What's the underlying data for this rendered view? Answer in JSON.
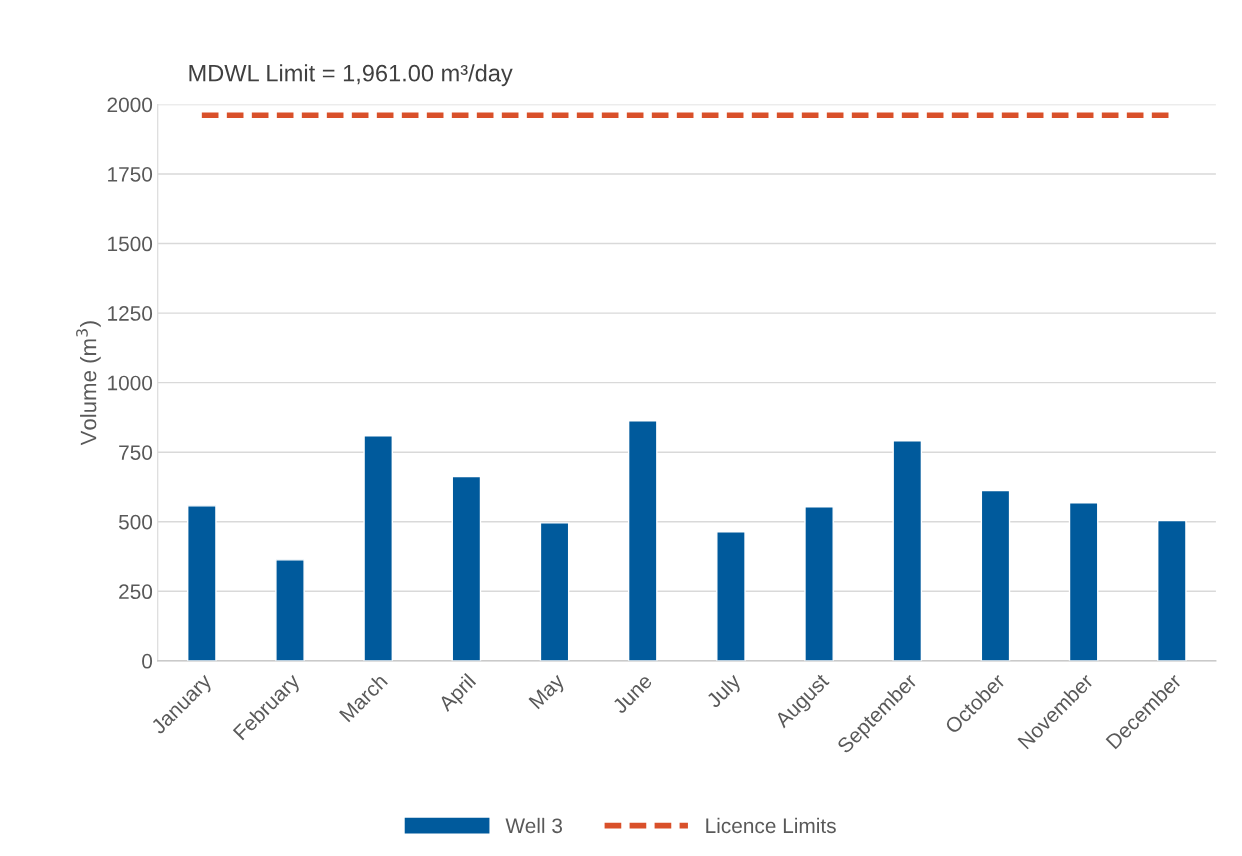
{
  "chart_data": {
    "type": "bar",
    "ylabel": "Volume (m$^{3}$)",
    "annotations": [
      "MDWL Limit = 1,961.00 m³/day"
    ],
    "categories": [
      "January",
      "February",
      "March",
      "April",
      "May",
      "June",
      "July",
      "August",
      "September",
      "October",
      "November",
      "December"
    ],
    "series": [
      {
        "name": "Well 3",
        "color": "#005a9c",
        "values": [
          557,
          363,
          809,
          662,
          496,
          863,
          464,
          554,
          791,
          612,
          568,
          504
        ]
      },
      {
        "name": "Licence Limits",
        "type": "line",
        "color": "#d9502a",
        "line_style": "dashed",
        "values": [
          1961,
          1961,
          1961,
          1961,
          1961,
          1961,
          1961,
          1961,
          1961,
          1961,
          1961,
          1961
        ]
      }
    ],
    "ylim": [
      0,
      2000
    ],
    "yticks": [
      0,
      250,
      500,
      750,
      1000,
      1250,
      1500,
      1750,
      2000
    ],
    "grid": "y",
    "legend": "bottom"
  }
}
